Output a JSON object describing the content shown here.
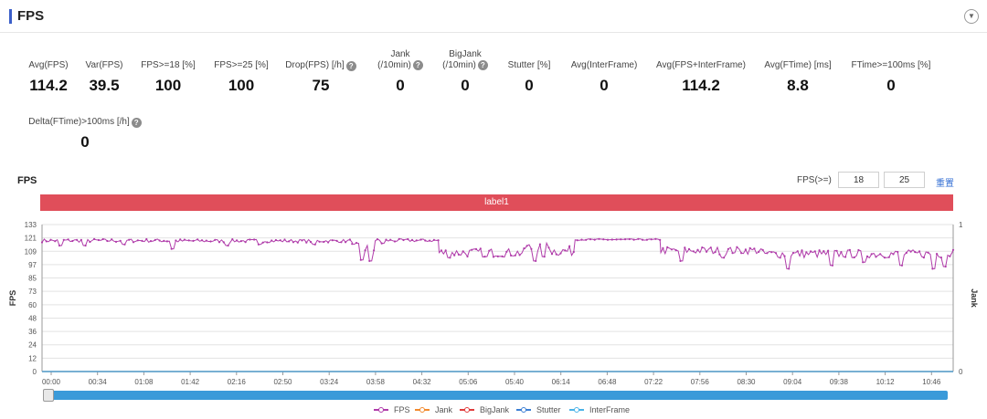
{
  "page": {
    "title": "FPS",
    "collapse_icon": "chevron-down-icon"
  },
  "metrics": [
    {
      "label": "Avg(FPS)",
      "value": "114.2",
      "help": false
    },
    {
      "label": "Var(FPS)",
      "value": "39.5",
      "help": false
    },
    {
      "label": "FPS>=18 [%]",
      "value": "100",
      "help": false
    },
    {
      "label": "FPS>=25 [%]",
      "value": "100",
      "help": false
    },
    {
      "label": "Drop(FPS) [/h]",
      "value": "75",
      "help": true
    },
    {
      "label": "Jank",
      "label2": "(/10min)",
      "value": "0",
      "help": true
    },
    {
      "label": "BigJank",
      "label2": "(/10min)",
      "value": "0",
      "help": true
    },
    {
      "label": "Stutter [%]",
      "value": "0",
      "help": false
    },
    {
      "label": "Avg(InterFrame)",
      "value": "0",
      "help": false
    },
    {
      "label": "Avg(FPS+InterFrame)",
      "value": "114.2",
      "help": false
    },
    {
      "label": "Avg(FTime) [ms]",
      "value": "8.8",
      "help": false
    },
    {
      "label": "FTime>=100ms [%]",
      "value": "0",
      "help": false
    },
    {
      "label": "Delta(FTime)>100ms [/h]",
      "value": "0",
      "help": true
    }
  ],
  "chart_controls": {
    "title": "FPS",
    "threshold_label": "FPS(>=)",
    "threshold1": "18",
    "threshold2": "25",
    "reset_label": "重置"
  },
  "label_band": "label1",
  "chart_data": {
    "type": "line",
    "title": "FPS",
    "ylabel": "FPS",
    "y2label": "Jank",
    "ylim": [
      0,
      133
    ],
    "y2lim": [
      0,
      1
    ],
    "y_ticks": [
      "133",
      "121",
      "109",
      "97",
      "85",
      "73",
      "60",
      "48",
      "36",
      "24",
      "12",
      "0"
    ],
    "y2_ticks": [
      "1",
      "0"
    ],
    "x_ticks": [
      "00:00",
      "00:34",
      "01:08",
      "01:42",
      "02:16",
      "02:50",
      "03:24",
      "03:58",
      "04:32",
      "05:06",
      "05:40",
      "06:14",
      "06:48",
      "07:22",
      "07:56",
      "08:30",
      "09:04",
      "09:38",
      "10:12",
      "10:46"
    ],
    "x_range_seconds": [
      0,
      670
    ],
    "series": [
      {
        "name": "FPS",
        "color": "#b03caa",
        "segments": [
          {
            "from": 0,
            "to": 92,
            "mean": 118.5,
            "jitter": 1.6,
            "dips": [
              [
                13,
                114
              ],
              [
                32,
                114
              ],
              [
                60,
                115
              ]
            ]
          },
          {
            "from": 92,
            "to": 228,
            "mean": 118.2,
            "jitter": 1.5,
            "dips": [
              [
                96,
                111
              ],
              [
                136,
                114
              ],
              [
                160,
                115
              ],
              [
                200,
                115
              ]
            ]
          },
          {
            "from": 228,
            "to": 245,
            "mean": 112,
            "jitter": 4.5,
            "dips": [
              [
                235,
                101
              ],
              [
                241,
                100
              ]
            ]
          },
          {
            "from": 245,
            "to": 292,
            "mean": 118.6,
            "jitter": 1.4,
            "dips": [
              [
                250,
                116
              ]
            ]
          },
          {
            "from": 292,
            "to": 355,
            "mean": 107.5,
            "jitter": 4.0,
            "dips": [
              [
                300,
                103
              ],
              [
                326,
                104
              ]
            ]
          },
          {
            "from": 355,
            "to": 375,
            "mean": 112,
            "jitter": 5.0,
            "dips": [
              [
                362,
                100
              ],
              [
                368,
                104
              ]
            ]
          },
          {
            "from": 375,
            "to": 392,
            "mean": 109,
            "jitter": 4.5,
            "dips": []
          },
          {
            "from": 392,
            "to": 455,
            "mean": 119.4,
            "jitter": 0.6,
            "dips": []
          },
          {
            "from": 455,
            "to": 530,
            "mean": 109.5,
            "jitter": 3.5,
            "dips": [
              [
                470,
                100
              ],
              [
                500,
                103
              ]
            ]
          },
          {
            "from": 530,
            "to": 670,
            "mean": 106.5,
            "jitter": 3.8,
            "dips": [
              [
                548,
                93
              ],
              [
                580,
                96
              ],
              [
                605,
                99
              ],
              [
                631,
                96
              ],
              [
                655,
                93
              ],
              [
                664,
                95
              ]
            ]
          }
        ]
      },
      {
        "name": "Jank",
        "color": "#f28a2e",
        "values": [
          0
        ]
      },
      {
        "name": "BigJank",
        "color": "#e03c3c",
        "values": [
          0
        ]
      },
      {
        "name": "Stutter",
        "color": "#3c7fd4",
        "values": [
          0
        ]
      },
      {
        "name": "InterFrame",
        "color": "#4ab3e8",
        "values": [
          0
        ]
      }
    ]
  },
  "legend": [
    "FPS",
    "Jank",
    "BigJank",
    "Stutter",
    "InterFrame"
  ]
}
